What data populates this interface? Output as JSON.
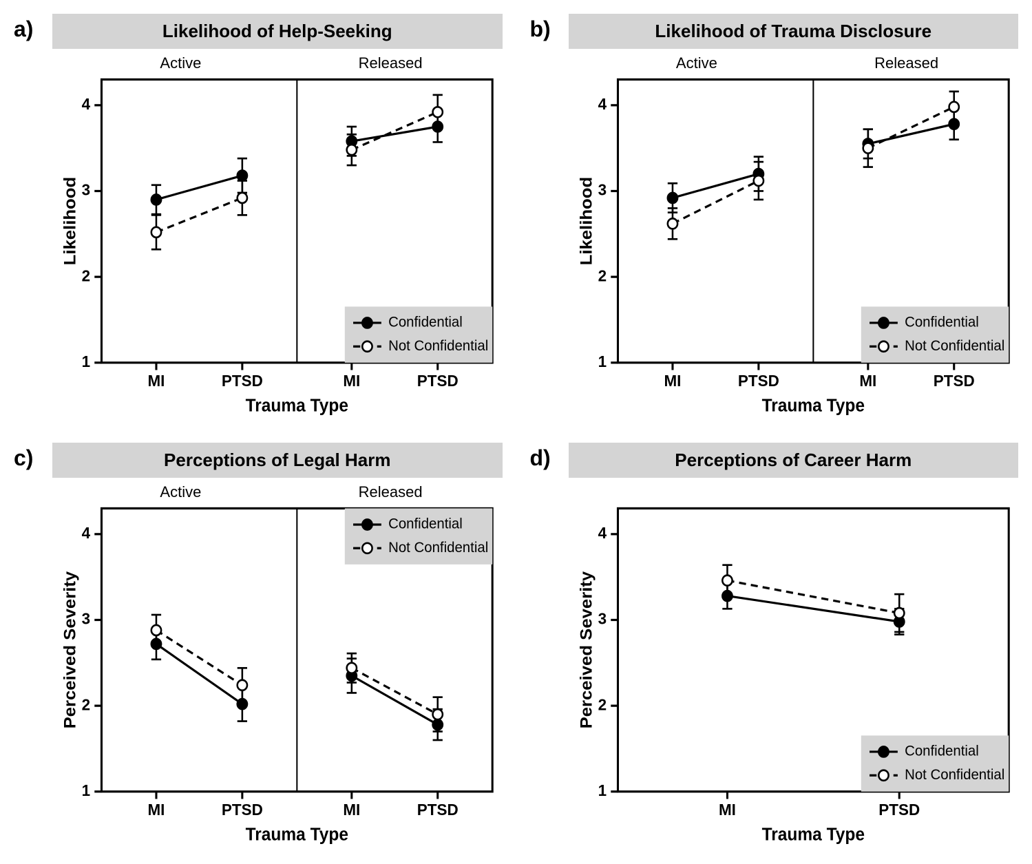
{
  "figure": {
    "background_color": "#ffffff",
    "text_color": "#000000",
    "title_bg": "#d4d4d4",
    "legend_bg": "#d4d4d4",
    "font_family": "Arial",
    "panel_letter_fontsize": 32,
    "panel_title_fontsize": 26,
    "subheader_fontsize": 22,
    "tick_label_fontsize": 22,
    "axis_title_fontsize": 24,
    "legend_fontsize": 20,
    "line_width": 3,
    "marker_radius": 7,
    "error_cap_half": 7,
    "dashed_pattern": "10 7",
    "panels": [
      {
        "key": "a",
        "letter": "a)",
        "title": "Likelihood of Help-Seeking",
        "y_label": "Likelihood",
        "x_label": "Trauma Type",
        "y_lim": [
          1,
          4.3
        ],
        "y_ticks": [
          1,
          2,
          3,
          4
        ],
        "x_categories": [
          "MI",
          "PTSD"
        ],
        "facets": [
          "Active",
          "Released"
        ],
        "legend_position": "bottom-right",
        "series": [
          {
            "name": "Confidential",
            "style": "solid",
            "marker": "filled",
            "data": [
              {
                "facet": "Active",
                "x": "MI",
                "y": 2.9,
                "err": 0.17
              },
              {
                "facet": "Active",
                "x": "PTSD",
                "y": 3.18,
                "err": 0.2
              },
              {
                "facet": "Released",
                "x": "MI",
                "y": 3.58,
                "err": 0.17
              },
              {
                "facet": "Released",
                "x": "PTSD",
                "y": 3.75,
                "err": 0.18
              }
            ]
          },
          {
            "name": "Not Confidential",
            "style": "dashed",
            "marker": "open",
            "data": [
              {
                "facet": "Active",
                "x": "MI",
                "y": 2.52,
                "err": 0.2
              },
              {
                "facet": "Active",
                "x": "PTSD",
                "y": 2.92,
                "err": 0.2
              },
              {
                "facet": "Released",
                "x": "MI",
                "y": 3.48,
                "err": 0.18
              },
              {
                "facet": "Released",
                "x": "PTSD",
                "y": 3.92,
                "err": 0.2
              }
            ]
          }
        ]
      },
      {
        "key": "b",
        "letter": "b)",
        "title": "Likelihood of Trauma Disclosure",
        "y_label": "Likelihood",
        "x_label": "Trauma Type",
        "y_lim": [
          1,
          4.3
        ],
        "y_ticks": [
          1,
          2,
          3,
          4
        ],
        "x_categories": [
          "MI",
          "PTSD"
        ],
        "facets": [
          "Active",
          "Released"
        ],
        "legend_position": "bottom-right",
        "series": [
          {
            "name": "Confidential",
            "style": "solid",
            "marker": "filled",
            "data": [
              {
                "facet": "Active",
                "x": "MI",
                "y": 2.92,
                "err": 0.17
              },
              {
                "facet": "Active",
                "x": "PTSD",
                "y": 3.2,
                "err": 0.2
              },
              {
                "facet": "Released",
                "x": "MI",
                "y": 3.55,
                "err": 0.17
              },
              {
                "facet": "Released",
                "x": "PTSD",
                "y": 3.78,
                "err": 0.18
              }
            ]
          },
          {
            "name": "Not Confidential",
            "style": "dashed",
            "marker": "open",
            "data": [
              {
                "facet": "Active",
                "x": "MI",
                "y": 2.62,
                "err": 0.18
              },
              {
                "facet": "Active",
                "x": "PTSD",
                "y": 3.12,
                "err": 0.22
              },
              {
                "facet": "Released",
                "x": "MI",
                "y": 3.5,
                "err": 0.22
              },
              {
                "facet": "Released",
                "x": "PTSD",
                "y": 3.98,
                "err": 0.18
              }
            ]
          }
        ]
      },
      {
        "key": "c",
        "letter": "c)",
        "title": "Perceptions of Legal Harm",
        "y_label": "Perceived Severity",
        "x_label": "Trauma Type",
        "y_lim": [
          1,
          4.3
        ],
        "y_ticks": [
          1,
          2,
          3,
          4
        ],
        "x_categories": [
          "MI",
          "PTSD"
        ],
        "facets": [
          "Active",
          "Released"
        ],
        "legend_position": "top-right",
        "series": [
          {
            "name": "Confidential",
            "style": "solid",
            "marker": "filled",
            "data": [
              {
                "facet": "Active",
                "x": "MI",
                "y": 2.72,
                "err": 0.18
              },
              {
                "facet": "Active",
                "x": "PTSD",
                "y": 2.02,
                "err": 0.2
              },
              {
                "facet": "Released",
                "x": "MI",
                "y": 2.35,
                "err": 0.2
              },
              {
                "facet": "Released",
                "x": "PTSD",
                "y": 1.78,
                "err": 0.18
              }
            ]
          },
          {
            "name": "Not Confidential",
            "style": "dashed",
            "marker": "open",
            "data": [
              {
                "facet": "Active",
                "x": "MI",
                "y": 2.88,
                "err": 0.18
              },
              {
                "facet": "Active",
                "x": "PTSD",
                "y": 2.24,
                "err": 0.2
              },
              {
                "facet": "Released",
                "x": "MI",
                "y": 2.44,
                "err": 0.17
              },
              {
                "facet": "Released",
                "x": "PTSD",
                "y": 1.9,
                "err": 0.2
              }
            ]
          }
        ]
      },
      {
        "key": "d",
        "letter": "d)",
        "title": "Perceptions of Career Harm",
        "y_label": "Perceived Severity",
        "x_label": "Trauma Type",
        "y_lim": [
          1,
          4.3
        ],
        "y_ticks": [
          1,
          2,
          3,
          4
        ],
        "x_categories": [
          "MI",
          "PTSD"
        ],
        "facets": null,
        "legend_position": "bottom-right",
        "series": [
          {
            "name": "Confidential",
            "style": "solid",
            "marker": "filled",
            "data": [
              {
                "x": "MI",
                "y": 3.28,
                "err": 0.15
              },
              {
                "x": "PTSD",
                "y": 2.98,
                "err": 0.15
              }
            ]
          },
          {
            "name": "Not Confidential",
            "style": "dashed",
            "marker": "open",
            "data": [
              {
                "x": "MI",
                "y": 3.46,
                "err": 0.18
              },
              {
                "x": "PTSD",
                "y": 3.08,
                "err": 0.22
              }
            ]
          }
        ]
      }
    ]
  }
}
